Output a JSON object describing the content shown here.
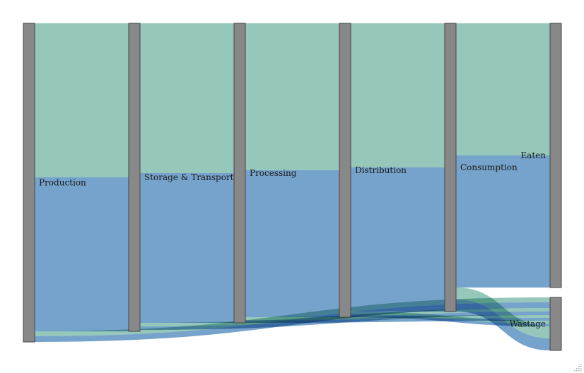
{
  "chart_data": {
    "type": "sankey",
    "nodes": [
      {
        "id": "production",
        "label": "Production"
      },
      {
        "id": "storage",
        "label": "Storage & Transport"
      },
      {
        "id": "processing",
        "label": "Processing"
      },
      {
        "id": "distribution",
        "label": "Distribution"
      },
      {
        "id": "consumption",
        "label": "Consumption"
      },
      {
        "id": "eaten",
        "label": "Eaten"
      },
      {
        "id": "wastage",
        "label": "Wastage"
      }
    ],
    "series_colors": [
      "#8fc4b7",
      "#6f9ec8"
    ],
    "node_color": "#888888",
    "links": [
      {
        "source": "production",
        "target": "storage",
        "series": 0,
        "value": 218
      },
      {
        "source": "production",
        "target": "storage",
        "series": 1,
        "value": 218
      },
      {
        "source": "production",
        "target": "wastage",
        "series": 0,
        "value": 7
      },
      {
        "source": "production",
        "target": "wastage",
        "series": 1,
        "value": 8
      },
      {
        "source": "storage",
        "target": "processing",
        "series": 0,
        "value": 212
      },
      {
        "source": "storage",
        "target": "processing",
        "series": 1,
        "value": 212
      },
      {
        "source": "storage",
        "target": "wastage",
        "series": 0,
        "value": 5
      },
      {
        "source": "storage",
        "target": "wastage",
        "series": 1,
        "value": 5
      },
      {
        "source": "processing",
        "target": "distribution",
        "series": 0,
        "value": 208
      },
      {
        "source": "processing",
        "target": "distribution",
        "series": 1,
        "value": 208
      },
      {
        "source": "processing",
        "target": "wastage",
        "series": 0,
        "value": 4
      },
      {
        "source": "processing",
        "target": "wastage",
        "series": 1,
        "value": 4
      },
      {
        "source": "distribution",
        "target": "consumption",
        "series": 0,
        "value": 204
      },
      {
        "source": "distribution",
        "target": "consumption",
        "series": 1,
        "value": 204
      },
      {
        "source": "distribution",
        "target": "wastage",
        "series": 0,
        "value": 4
      },
      {
        "source": "distribution",
        "target": "wastage",
        "series": 1,
        "value": 4
      },
      {
        "source": "consumption",
        "target": "eaten",
        "series": 0,
        "value": 187
      },
      {
        "source": "consumption",
        "target": "eaten",
        "series": 1,
        "value": 187
      },
      {
        "source": "consumption",
        "target": "wastage",
        "series": 0,
        "value": 17
      },
      {
        "source": "consumption",
        "target": "wastage",
        "series": 1,
        "value": 17
      }
    ]
  }
}
